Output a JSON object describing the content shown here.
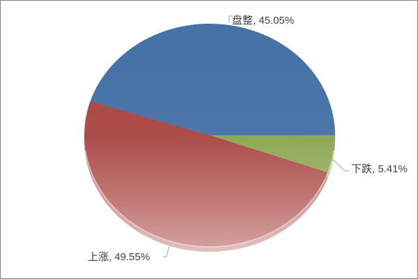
{
  "chart_data": {
    "type": "pie",
    "title": "",
    "slices": [
      {
        "label": "盘整",
        "value": 45.05,
        "display": "盘整, 45.05%",
        "color": "#4571A6"
      },
      {
        "label": "下跌",
        "value": 5.41,
        "display": "下跌, 5.41%",
        "color": "#89A54E"
      },
      {
        "label": "上涨",
        "value": 49.55,
        "display": "上涨, 49.55%",
        "color": "#AA4643"
      }
    ],
    "layout": {
      "start_angle_deg": 162.2,
      "direction": "clockwise",
      "label_style": "outside-with-leader-lines",
      "effect": "3d-bottom-depth",
      "legend": "none",
      "background": "#FFFFFF",
      "border_color": "#808080",
      "label_text_color": "#3F3F3F",
      "leader_line_color": "#A6A6A6"
    }
  }
}
